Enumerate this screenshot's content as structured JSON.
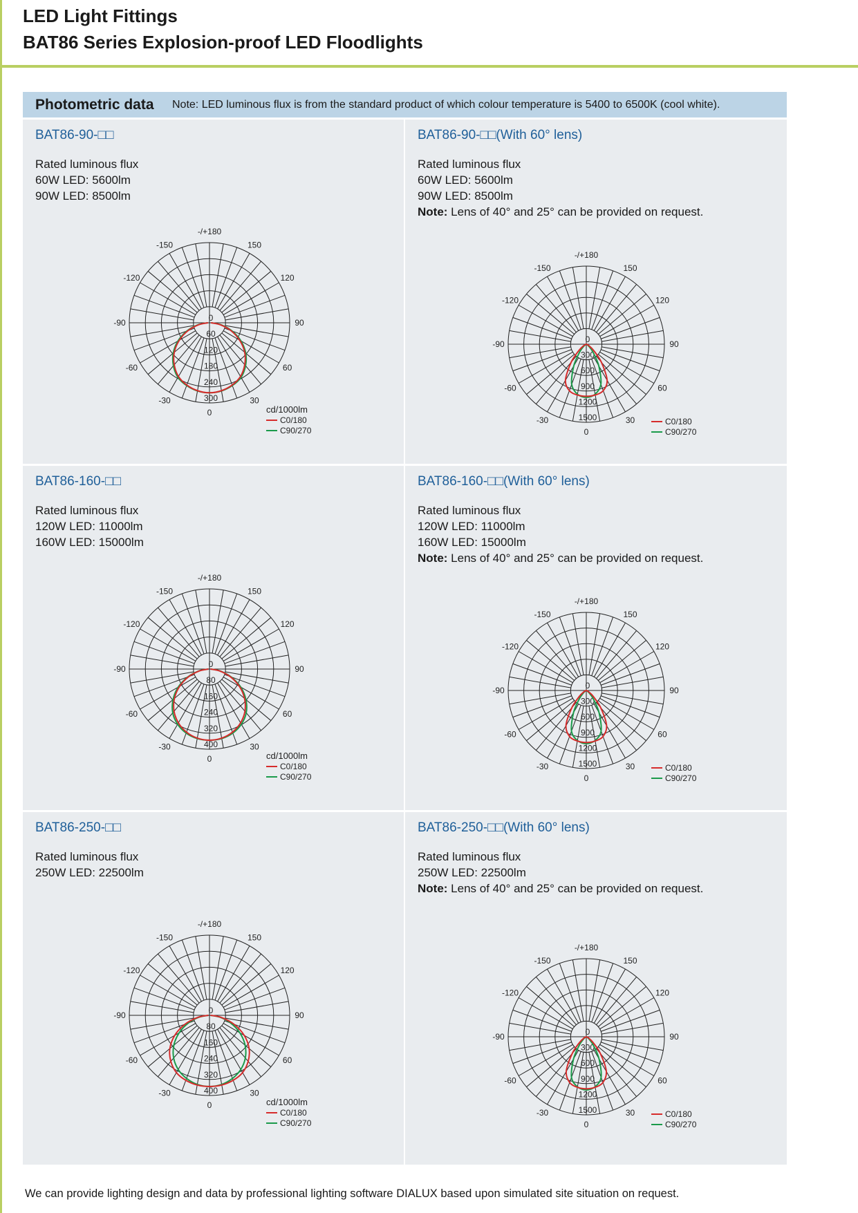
{
  "header": {
    "title": "LED Light Fittings",
    "subtitle": "BAT86 Series Explosion-proof LED Floodlights",
    "accent_color": "#b9cf62"
  },
  "section": {
    "heading": "Photometric data",
    "note": "Note: LED luminous flux is from the standard product of which colour temperature is 5400 to 6500K (cool white).",
    "band_color": "#bcd4e6"
  },
  "cells": [
    {
      "title": "BAT86-90-□□",
      "lines": [
        "Rated luminous flux",
        "60W  LED: 5600lm",
        "90W  LED: 8500lm"
      ],
      "note_bold": "",
      "note": ""
    },
    {
      "title": "BAT86-90-□□(With 60° lens)",
      "lines": [
        "Rated luminous flux",
        "60W  LED: 5600lm",
        "90W  LED: 8500lm"
      ],
      "note_bold": "Note:",
      "note": " Lens of 40°  and 25°  can be provided on request."
    },
    {
      "title": "BAT86-160-□□",
      "lines": [
        "Rated luminous flux",
        "120W  LED: 11000lm",
        "160W  LED: 15000lm"
      ],
      "note_bold": "",
      "note": ""
    },
    {
      "title": "BAT86-160-□□(With 60° lens)",
      "lines": [
        "Rated luminous flux",
        "120W  LED: 11000lm",
        "160W  LED: 15000lm"
      ],
      "note_bold": "Note:",
      "note": " Lens of 40°  and 25°  can be provided on request."
    },
    {
      "title": "BAT86-250-□□",
      "lines": [
        "Rated luminous flux",
        "250W  LED: 22500lm"
      ],
      "note_bold": "",
      "note": ""
    },
    {
      "title": "BAT86-250-□□(With 60° lens)",
      "lines": [
        "Rated luminous flux",
        "250W  LED: 22500lm"
      ],
      "note_bold": "Note:",
      "note": " Lens of 40°  and 25°  can be provided on request."
    }
  ],
  "chart_data": [
    {
      "type": "polar",
      "unit_label": "cd/1000lm",
      "rings": [
        0,
        60,
        120,
        180,
        240,
        300
      ],
      "rmax": 300,
      "angle_labels": [
        "0",
        "30",
        "60",
        "90",
        "120",
        "150",
        "-/+180",
        "-150",
        "-120",
        "-90",
        "-60",
        "-30"
      ],
      "angles": [
        0,
        10,
        20,
        30,
        40,
        50,
        60,
        70,
        80,
        90
      ],
      "series": [
        {
          "name": "C0/180",
          "color": "#d62b2b",
          "values": [
            262,
            258,
            248,
            232,
            205,
            172,
            130,
            85,
            40,
            5
          ]
        },
        {
          "name": "C90/270",
          "color": "#1a9a4a",
          "values": [
            262,
            259,
            250,
            236,
            210,
            177,
            136,
            90,
            45,
            8
          ]
        }
      ]
    },
    {
      "type": "polar",
      "unit_label": "",
      "rings": [
        0,
        300,
        600,
        900,
        1200,
        1500
      ],
      "rmax": 1500,
      "angle_labels": [
        "0",
        "30",
        "60",
        "90",
        "120",
        "150",
        "-/+180",
        "-150",
        "-120",
        "-90",
        "-60",
        "-30"
      ],
      "angles": [
        0,
        10,
        20,
        30,
        40,
        50,
        60,
        70,
        80,
        90
      ],
      "series": [
        {
          "name": "C0/180",
          "color": "#d62b2b",
          "values": [
            1000,
            990,
            950,
            800,
            450,
            180,
            60,
            20,
            5,
            0
          ]
        },
        {
          "name": "C90/270",
          "color": "#1a9a4a",
          "values": [
            1020,
            975,
            820,
            480,
            200,
            70,
            20,
            5,
            0,
            0
          ]
        }
      ]
    },
    {
      "type": "polar",
      "unit_label": "cd/1000lm",
      "rings": [
        0,
        80,
        160,
        240,
        320,
        400
      ],
      "rmax": 400,
      "angle_labels": [
        "0",
        "30",
        "60",
        "90",
        "120",
        "150",
        "-/+180",
        "-150",
        "-120",
        "-90",
        "-60",
        "-30"
      ],
      "angles": [
        0,
        10,
        20,
        30,
        40,
        50,
        60,
        70,
        80,
        90
      ],
      "series": [
        {
          "name": "C0/180",
          "color": "#d62b2b",
          "values": [
            355,
            350,
            335,
            310,
            275,
            228,
            172,
            110,
            50,
            5
          ]
        },
        {
          "name": "C90/270",
          "color": "#1a9a4a",
          "values": [
            355,
            352,
            340,
            318,
            285,
            237,
            180,
            115,
            53,
            6
          ]
        }
      ]
    },
    {
      "type": "polar",
      "unit_label": "",
      "rings": [
        0,
        300,
        600,
        900,
        1200,
        1500
      ],
      "rmax": 1500,
      "angle_labels": [
        "0",
        "30",
        "60",
        "90",
        "120",
        "150",
        "-/+180",
        "-150",
        "-120",
        "-90",
        "-60",
        "-30"
      ],
      "angles": [
        0,
        10,
        20,
        30,
        40,
        50,
        60,
        70,
        80,
        90
      ],
      "series": [
        {
          "name": "C0/180",
          "color": "#d62b2b",
          "values": [
            1000,
            985,
            940,
            780,
            430,
            170,
            55,
            18,
            5,
            0
          ]
        },
        {
          "name": "C90/270",
          "color": "#1a9a4a",
          "values": [
            1020,
            975,
            830,
            490,
            205,
            70,
            20,
            5,
            0,
            0
          ]
        }
      ]
    },
    {
      "type": "polar",
      "unit_label": "cd/1000lm",
      "rings": [
        0,
        80,
        160,
        240,
        320,
        400
      ],
      "rmax": 400,
      "angle_labels": [
        "0",
        "30",
        "60",
        "90",
        "120",
        "150",
        "-/+180",
        "-150",
        "-120",
        "-90",
        "-60",
        "-30"
      ],
      "angles": [
        0,
        10,
        20,
        30,
        40,
        50,
        60,
        70,
        80,
        90
      ],
      "series": [
        {
          "name": "C0/180",
          "color": "#d62b2b",
          "values": [
            355,
            353,
            345,
            330,
            300,
            258,
            200,
            130,
            60,
            5
          ]
        },
        {
          "name": "C90/270",
          "color": "#1a9a4a",
          "values": [
            355,
            350,
            335,
            312,
            278,
            232,
            175,
            112,
            52,
            5
          ]
        }
      ]
    },
    {
      "type": "polar",
      "unit_label": "",
      "rings": [
        0,
        300,
        600,
        900,
        1200,
        1500
      ],
      "rmax": 1500,
      "angle_labels": [
        "0",
        "30",
        "60",
        "90",
        "120",
        "150",
        "-/+180",
        "-150",
        "-120",
        "-90",
        "-60",
        "-30"
      ],
      "angles": [
        0,
        10,
        20,
        30,
        40,
        50,
        60,
        70,
        80,
        90
      ],
      "series": [
        {
          "name": "C0/180",
          "color": "#d62b2b",
          "values": [
            1000,
            985,
            935,
            770,
            420,
            165,
            55,
            18,
            5,
            0
          ]
        },
        {
          "name": "C90/270",
          "color": "#1a9a4a",
          "values": [
            1020,
            975,
            830,
            490,
            205,
            70,
            20,
            5,
            0,
            0
          ]
        }
      ]
    }
  ],
  "footer": {
    "text": "We can provide lighting design and data by professional lighting software DIALUX based upon simulated site situation on request."
  }
}
